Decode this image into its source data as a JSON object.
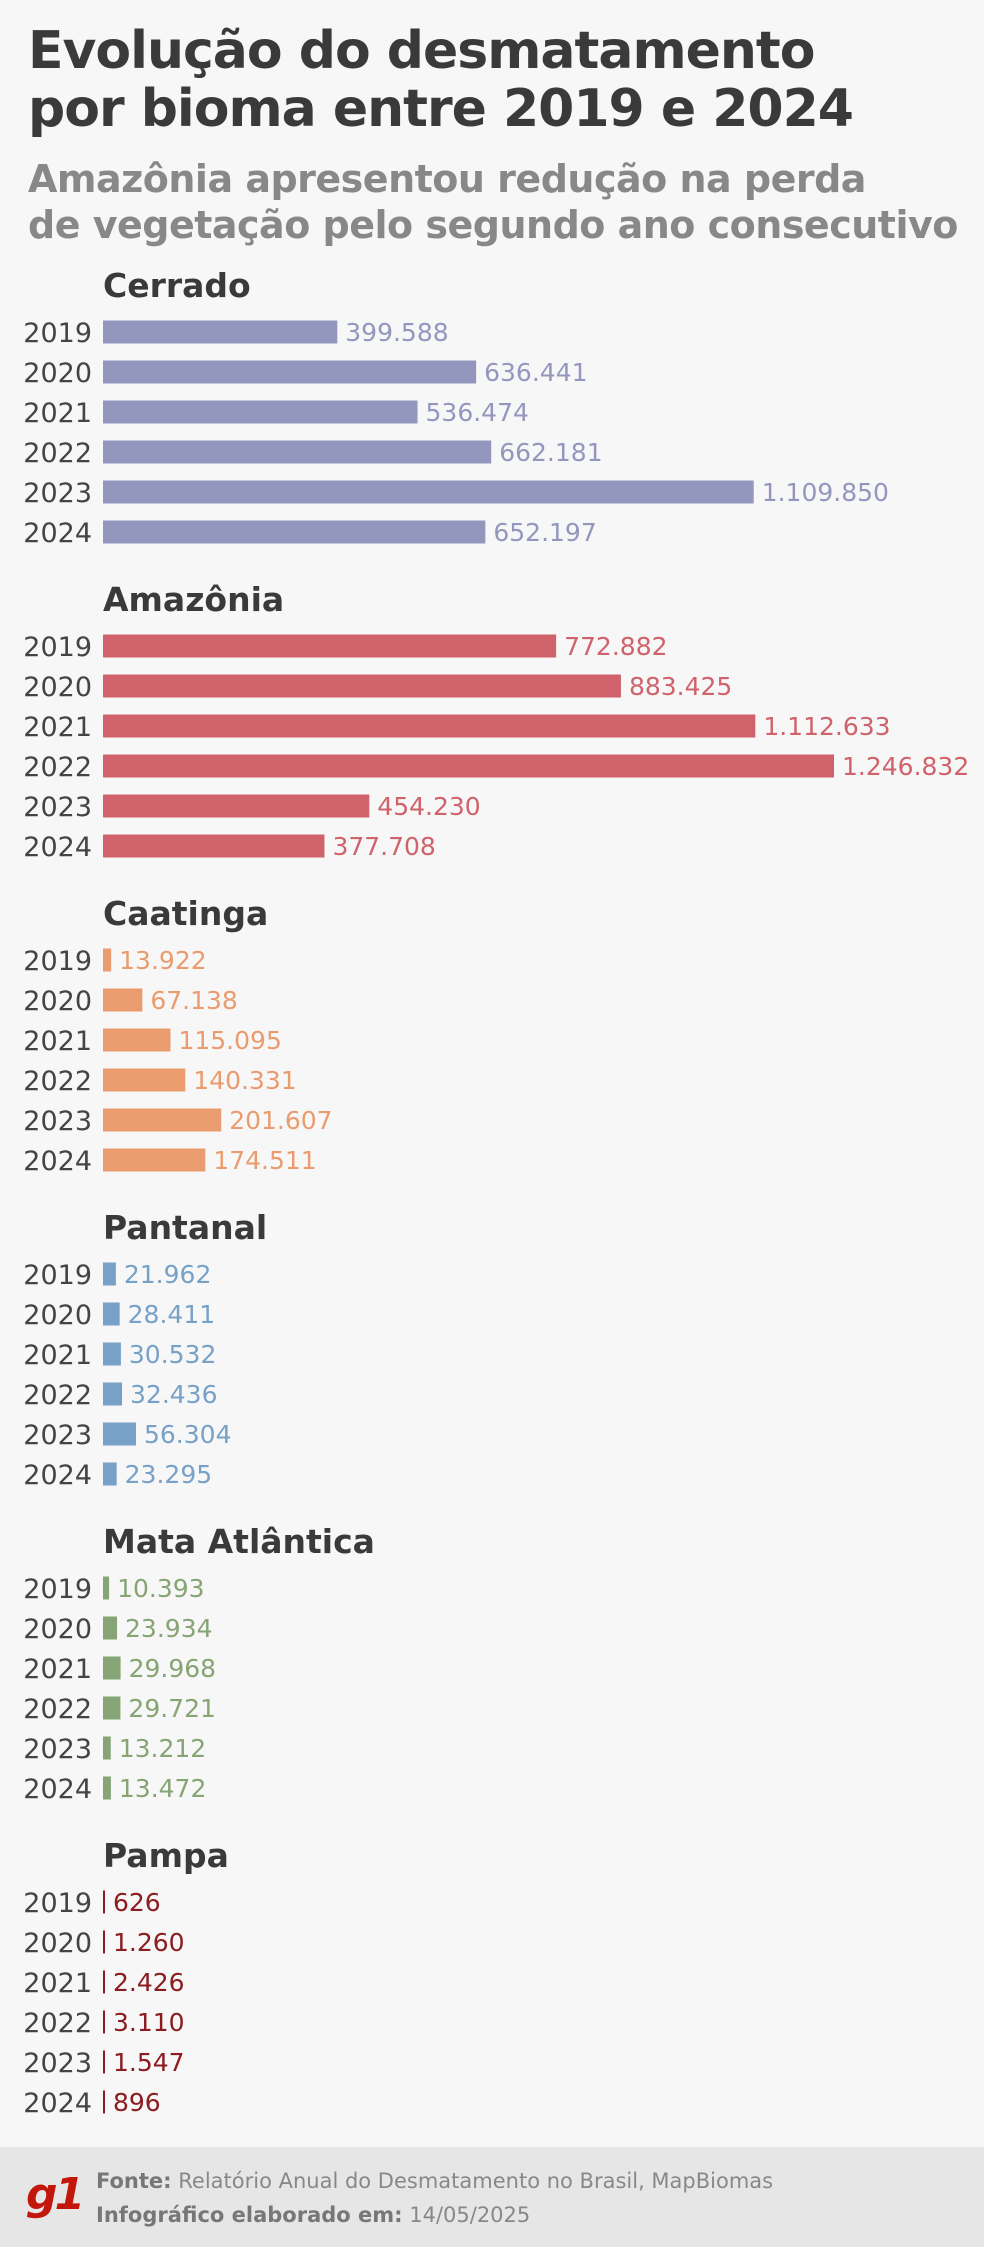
{
  "header": {
    "title_line1": "Evolução do desmatamento",
    "title_line2": "por bioma entre 2019 e 2024",
    "subtitle_line1": "Amazônia apresentou redução na perda",
    "subtitle_line2": "de vegetação pelo segundo ano consecutivo"
  },
  "colors": {
    "title": "#3a3a3a",
    "subtitle": "#888888",
    "cerrado": "#9497bd",
    "amazonia": "#d0626b",
    "caatinga": "#ea9c6e",
    "pantanal": "#77a1c7",
    "mata_atlantica": "#86a474",
    "pampa": "#8b1c20",
    "g1": "#c4170c"
  },
  "chart_data": [
    {
      "type": "bar",
      "orientation": "horizontal",
      "title": "Cerrado",
      "categories": [
        "2019",
        "2020",
        "2021",
        "2022",
        "2023",
        "2024"
      ],
      "values": [
        399588,
        636441,
        536474,
        662181,
        1109850,
        652197
      ],
      "value_labels": [
        "399.588",
        "636.441",
        "536.474",
        "662.181",
        "1.109.850",
        "652.197"
      ],
      "color": "#9497bd"
    },
    {
      "type": "bar",
      "orientation": "horizontal",
      "title": "Amazônia",
      "categories": [
        "2019",
        "2020",
        "2021",
        "2022",
        "2023",
        "2024"
      ],
      "values": [
        772882,
        883425,
        1112633,
        1246832,
        454230,
        377708
      ],
      "value_labels": [
        "772.882",
        "883.425",
        "1.112.633",
        "1.246.832",
        "454.230",
        "377.708"
      ],
      "color": "#d0626b"
    },
    {
      "type": "bar",
      "orientation": "horizontal",
      "title": "Caatinga",
      "categories": [
        "2019",
        "2020",
        "2021",
        "2022",
        "2023",
        "2024"
      ],
      "values": [
        13922,
        67138,
        115095,
        140331,
        201607,
        174511
      ],
      "value_labels": [
        "13.922",
        "67.138",
        "115.095",
        "140.331",
        "201.607",
        "174.511"
      ],
      "color": "#ea9c6e"
    },
    {
      "type": "bar",
      "orientation": "horizontal",
      "title": "Pantanal",
      "categories": [
        "2019",
        "2020",
        "2021",
        "2022",
        "2023",
        "2024"
      ],
      "values": [
        21962,
        28411,
        30532,
        32436,
        56304,
        23295
      ],
      "value_labels": [
        "21.962",
        "28.411",
        "30.532",
        "32.436",
        "56.304",
        "23.295"
      ],
      "color": "#77a1c7"
    },
    {
      "type": "bar",
      "orientation": "horizontal",
      "title": "Mata Atlântica",
      "categories": [
        "2019",
        "2020",
        "2021",
        "2022",
        "2023",
        "2024"
      ],
      "values": [
        10393,
        23934,
        29968,
        29721,
        13212,
        13472
      ],
      "value_labels": [
        "10.393",
        "23.934",
        "29.968",
        "29.721",
        "13.212",
        "13.472"
      ],
      "color": "#86a474"
    },
    {
      "type": "bar",
      "orientation": "horizontal",
      "title": "Pampa",
      "categories": [
        "2019",
        "2020",
        "2021",
        "2022",
        "2023",
        "2024"
      ],
      "values": [
        626,
        1260,
        2426,
        3110,
        1547,
        896
      ],
      "value_labels": [
        "626",
        "1.260",
        "2.426",
        "3.110",
        "1.547",
        "896"
      ],
      "color": "#8b1c20"
    }
  ],
  "footer": {
    "logo": "g1",
    "source_label": "Fonte:",
    "source_text": "Relatório Anual do Desmatamento no Brasil, MapBiomas",
    "date_label": "Infográfico elaborado em:",
    "date_text": "14/05/2025"
  }
}
